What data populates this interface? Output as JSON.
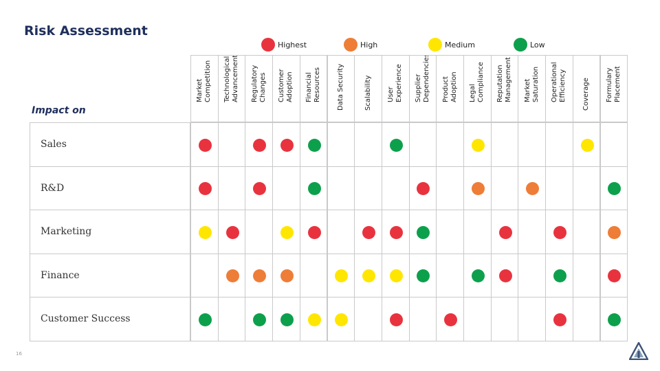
{
  "title": "Risk Assessment",
  "impact_label": "Impact on",
  "page_number": "16",
  "colors": {
    "Highest": "#e8333f",
    "High": "#ee7d37",
    "Medium": "#ffe600",
    "Low": "#0da04c"
  },
  "legend": [
    {
      "level": "Highest",
      "label": "Highest",
      "color": "#e8333f"
    },
    {
      "level": "High",
      "label": "High",
      "color": "#ee7d37"
    },
    {
      "level": "Medium",
      "label": "Medium",
      "color": "#ffe600"
    },
    {
      "level": "Low",
      "label": "Low",
      "color": "#0da04c"
    }
  ],
  "chart_data": {
    "type": "table",
    "title": "Risk Assessment",
    "row_header": "Impact on",
    "columns": [
      "Market\nCompetition",
      "Technological\nAdvancements",
      "Regulatory\nChanges",
      "Customer\nAdoption",
      "Financial\nResources",
      "Data Security",
      "Scalability",
      "User\nExperience",
      "Supplier\nDependencies",
      "Product\nAdoption",
      "Legal\nCompliance",
      "Reputation\nManagement",
      "Market\nSaturation",
      "Operational\nEfficiency",
      "Coverage",
      "Formulary\nPlacement"
    ],
    "rows": [
      {
        "label": "Sales",
        "values": [
          "Highest",
          "",
          "Highest",
          "Highest",
          "Low",
          "",
          "",
          "Low",
          "",
          "",
          "Medium",
          "",
          "",
          "",
          "Medium",
          ""
        ]
      },
      {
        "label": "R&D",
        "values": [
          "Highest",
          "",
          "Highest",
          "",
          "Low",
          "",
          "",
          "",
          "Highest",
          "",
          "High",
          "",
          "High",
          "",
          "",
          "Low"
        ]
      },
      {
        "label": "Marketing",
        "values": [
          "Medium",
          "Highest",
          "",
          "Medium",
          "Highest",
          "",
          "Highest",
          "Highest",
          "Low",
          "",
          "",
          "Highest",
          "",
          "Highest",
          "",
          "High"
        ]
      },
      {
        "label": "Finance",
        "values": [
          "",
          "High",
          "High",
          "High",
          "",
          "Medium",
          "Medium",
          "Medium",
          "Low",
          "",
          "Low",
          "Highest",
          "",
          "Low",
          "",
          "Highest"
        ]
      },
      {
        "label": "Customer Success",
        "values": [
          "Low",
          "",
          "Low",
          "Low",
          "Medium",
          "Medium",
          "",
          "Highest",
          "",
          "Highest",
          "",
          "",
          "",
          "Highest",
          "",
          "Low"
        ]
      }
    ]
  }
}
